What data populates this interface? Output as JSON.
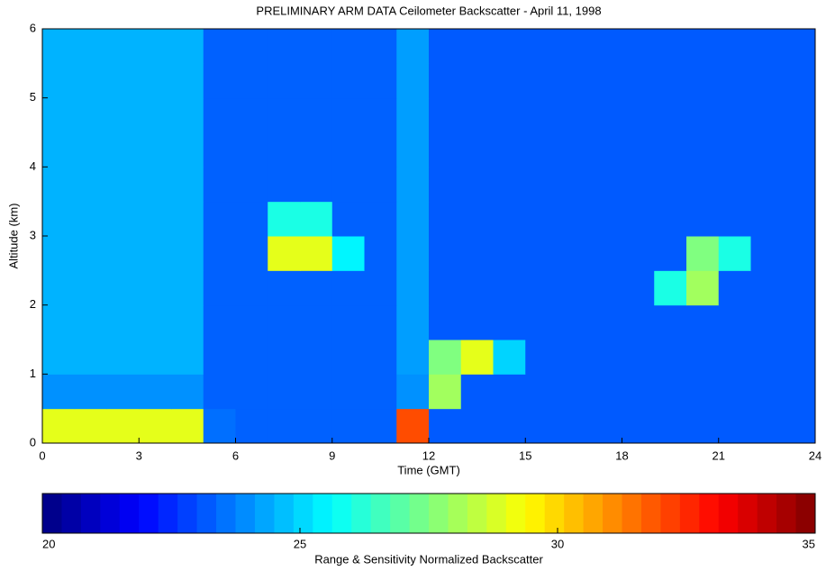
{
  "chart_data": {
    "type": "heatmap",
    "title": "PRELIMINARY ARM DATA Ceilometer Backscatter - April 11, 1998",
    "xlabel": "Time (GMT)",
    "ylabel": "Altitude (km)",
    "xlim": [
      0,
      24
    ],
    "xticks": [
      0,
      3,
      6,
      9,
      12,
      15,
      18,
      21,
      24
    ],
    "ylim": [
      0,
      6
    ],
    "yticks": [
      0,
      1,
      2,
      3,
      4,
      5,
      6
    ],
    "xedges": [
      0,
      1,
      2,
      3,
      4,
      5,
      6,
      7,
      8,
      9,
      10,
      11,
      12,
      13,
      14,
      15,
      16,
      17,
      18,
      19,
      20,
      21,
      22,
      23,
      24
    ],
    "yedges": [
      0,
      0.5,
      1,
      1.5,
      2,
      2.5,
      3,
      3.5,
      4,
      4.5,
      5,
      5.5,
      6
    ],
    "z": [
      [
        29,
        29,
        29,
        29,
        29,
        23.5,
        23.3,
        23.3,
        23.3,
        23.3,
        23.3,
        32,
        23.2,
        23.2,
        23.2,
        23.2,
        23.2,
        23.2,
        23.2,
        23.2,
        23.2,
        23.2,
        23.2,
        23.2
      ],
      [
        24,
        24,
        24,
        24,
        24,
        23.3,
        23.3,
        23.3,
        23.3,
        23.3,
        23.3,
        24,
        28,
        23.2,
        23.2,
        23.2,
        23.2,
        23.2,
        23.2,
        23.2,
        23.2,
        23.2,
        23.2,
        23.2
      ],
      [
        24.5,
        24.5,
        24.5,
        24.5,
        24.5,
        23.3,
        23.3,
        23.3,
        23.3,
        23.3,
        23.3,
        24.2,
        27.5,
        29,
        25,
        23.2,
        23.2,
        23.2,
        23.2,
        23.2,
        23.2,
        23.2,
        23.2,
        23.2
      ],
      [
        24.5,
        24.5,
        24.5,
        24.5,
        24.5,
        23.3,
        23.3,
        23.3,
        23.3,
        23.3,
        23.3,
        24.2,
        23.2,
        23.2,
        23.2,
        23.2,
        23.2,
        23.2,
        23.2,
        23.2,
        23.2,
        23.2,
        23.2,
        23.2
      ],
      [
        24.5,
        24.5,
        24.5,
        24.5,
        24.5,
        23.3,
        23.3,
        23.3,
        23.3,
        23.3,
        23.3,
        24.2,
        23.2,
        23.2,
        23.2,
        23.2,
        23.2,
        23.2,
        23.2,
        26,
        28,
        23.2,
        23.2,
        23.2
      ],
      [
        24.5,
        24.5,
        24.5,
        24.5,
        24.5,
        23.3,
        23.3,
        29,
        29,
        25.5,
        23.3,
        24.2,
        23.2,
        23.2,
        23.2,
        23.2,
        23.2,
        23.2,
        23.2,
        23.2,
        27.5,
        26,
        23.2,
        23.2
      ],
      [
        24.5,
        24.5,
        24.5,
        24.5,
        24.5,
        23.3,
        23.3,
        26,
        26,
        23.3,
        23.3,
        24.2,
        23.2,
        23.2,
        23.2,
        23.2,
        23.2,
        23.2,
        23.2,
        23.2,
        23.2,
        23.2,
        23.2,
        23.2
      ],
      [
        24.5,
        24.5,
        24.5,
        24.5,
        24.5,
        23.3,
        23.3,
        23.3,
        23.3,
        23.3,
        23.3,
        24.2,
        23.2,
        23.2,
        23.2,
        23.2,
        23.2,
        23.2,
        23.2,
        23.2,
        23.2,
        23.2,
        23.2,
        23.2
      ],
      [
        24.5,
        24.5,
        24.5,
        24.5,
        24.5,
        23.3,
        23.3,
        23.3,
        23.3,
        23.3,
        23.3,
        24.2,
        23.2,
        23.2,
        23.2,
        23.2,
        23.2,
        23.2,
        23.2,
        23.2,
        23.2,
        23.2,
        23.2,
        23.2
      ],
      [
        24.5,
        24.5,
        24.5,
        24.5,
        24.5,
        23.3,
        23.3,
        23.3,
        23.3,
        23.3,
        23.3,
        24.2,
        23.2,
        23.2,
        23.2,
        23.2,
        23.2,
        23.2,
        23.2,
        23.2,
        23.2,
        23.2,
        23.2,
        23.2
      ],
      [
        24.5,
        24.5,
        24.5,
        24.5,
        24.5,
        23.3,
        23.3,
        23.3,
        23.3,
        23.3,
        23.3,
        24.2,
        23.2,
        23.2,
        23.2,
        23.2,
        23.2,
        23.2,
        23.2,
        23.2,
        23.2,
        23.2,
        23.2,
        23.2
      ],
      [
        24.5,
        24.5,
        24.5,
        24.5,
        24.5,
        23.3,
        23.3,
        23.3,
        23.3,
        23.3,
        23.3,
        24.2,
        23.2,
        23.2,
        23.2,
        23.2,
        23.2,
        23.2,
        23.2,
        23.2,
        23.2,
        23.2,
        23.2,
        23.2
      ]
    ],
    "colormap": "jet",
    "colorbar_label": "Range & Sensitivity Normalized Backscatter",
    "zlim": [
      20,
      35
    ],
    "zticks": [
      20,
      25,
      30,
      35
    ]
  }
}
